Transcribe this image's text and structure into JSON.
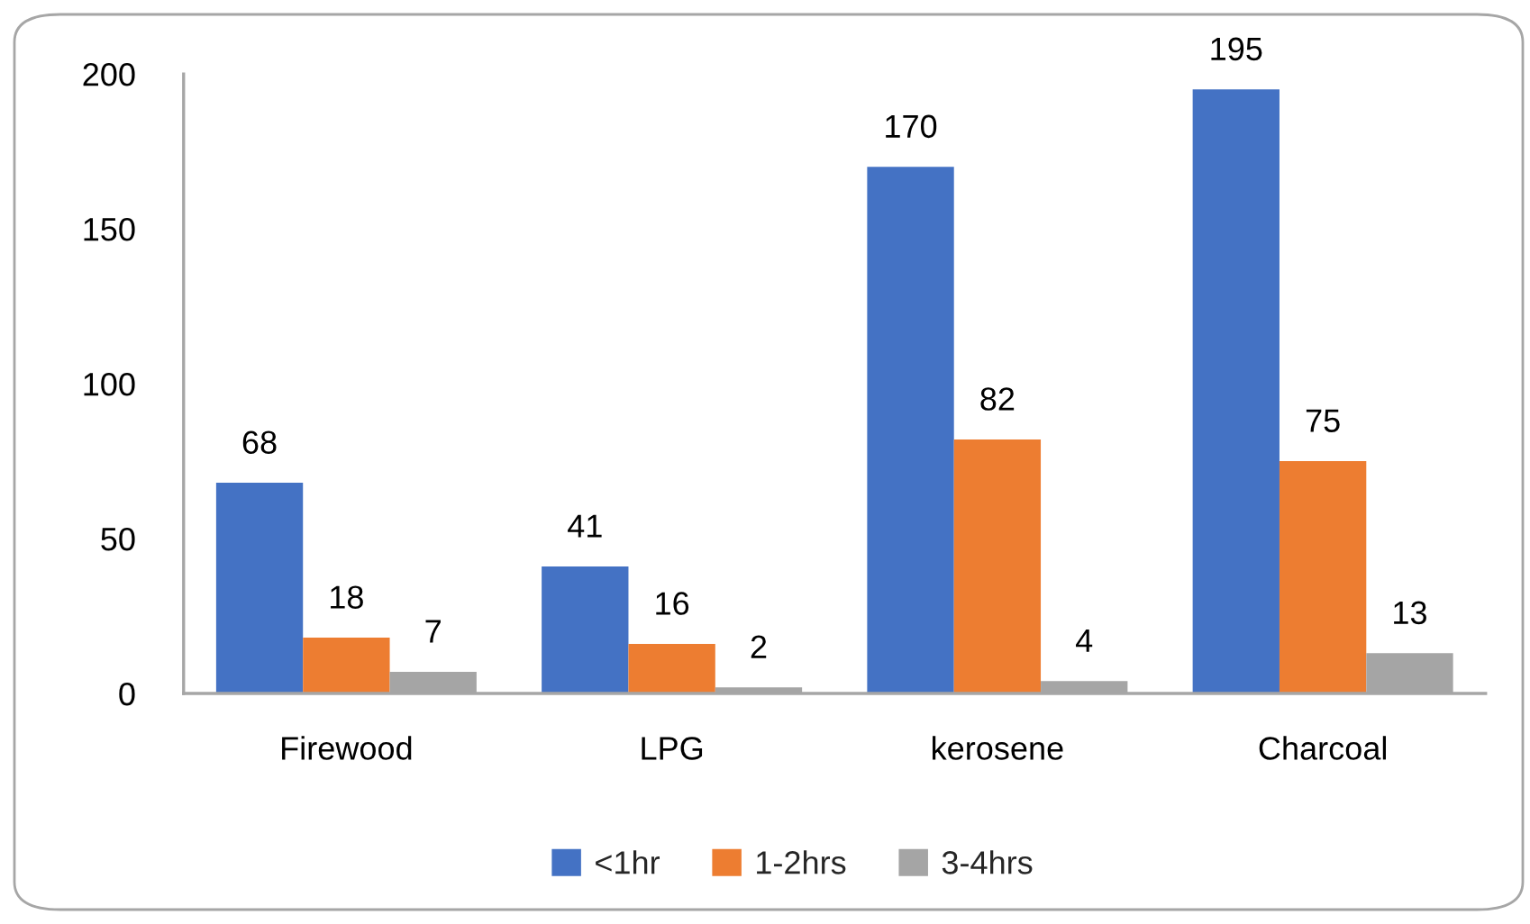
{
  "chart_data": {
    "type": "bar",
    "categories": [
      "Firewood",
      "LPG",
      "kerosene",
      "Charcoal"
    ],
    "series": [
      {
        "name": "<1hr",
        "color": "#4472c4",
        "values": [
          68,
          41,
          170,
          195
        ]
      },
      {
        "name": "1-2hrs",
        "color": "#ed7d31",
        "values": [
          18,
          16,
          82,
          75
        ]
      },
      {
        "name": "3-4hrs",
        "color": "#a5a5a5",
        "values": [
          7,
          2,
          4,
          13
        ]
      }
    ],
    "ylim": [
      0,
      200
    ],
    "yticks": [
      0,
      50,
      100,
      150,
      200
    ],
    "grid": false,
    "legend": "bottom",
    "data_labels": true
  }
}
